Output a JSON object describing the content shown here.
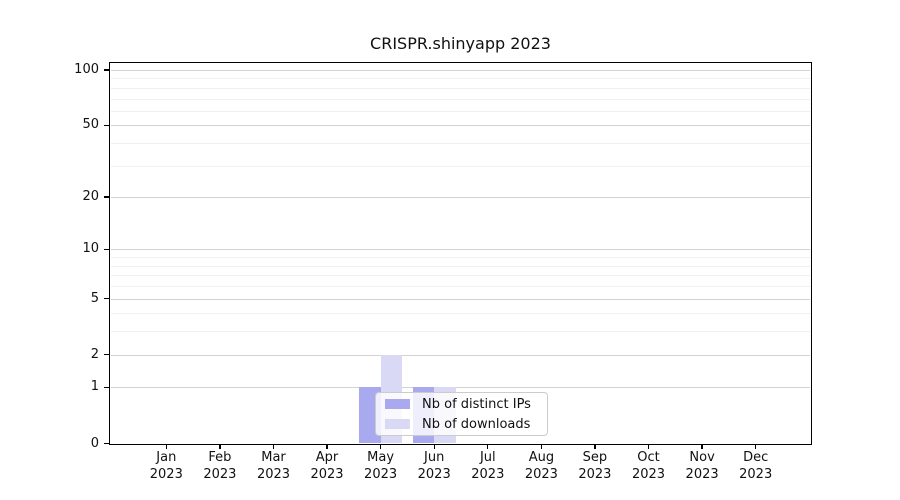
{
  "chart_data": {
    "type": "bar",
    "title": "CRISPR.shinyapp 2023",
    "categories": [
      "Jan",
      "Feb",
      "Mar",
      "Apr",
      "May",
      "Jun",
      "Jul",
      "Aug",
      "Sep",
      "Oct",
      "Nov",
      "Dec"
    ],
    "category_year": "2023",
    "series": [
      {
        "name": "Nb of distinct IPs",
        "color": "#a9a9f0",
        "values": [
          0,
          0,
          0,
          0,
          1,
          1,
          0,
          0,
          0,
          0,
          0,
          0
        ]
      },
      {
        "name": "Nb of downloads",
        "color": "#d9d9f6",
        "values": [
          0,
          0,
          0,
          0,
          2,
          1,
          0,
          0,
          0,
          0,
          0,
          0
        ]
      }
    ],
    "yticks": [
      0,
      1,
      2,
      5,
      10,
      20,
      50,
      100
    ],
    "ytick_labels": [
      "0",
      "1",
      "2",
      "5",
      "10",
      "20",
      "50",
      "100"
    ],
    "scale": "log1p",
    "ylim": [
      0,
      110
    ],
    "grid": true,
    "legend_position": "inside-bottom-center"
  },
  "legend": {
    "items": [
      {
        "label": "Nb of distinct IPs",
        "color": "#a9a9f0"
      },
      {
        "label": "Nb of downloads",
        "color": "#d9d9f6"
      }
    ]
  }
}
